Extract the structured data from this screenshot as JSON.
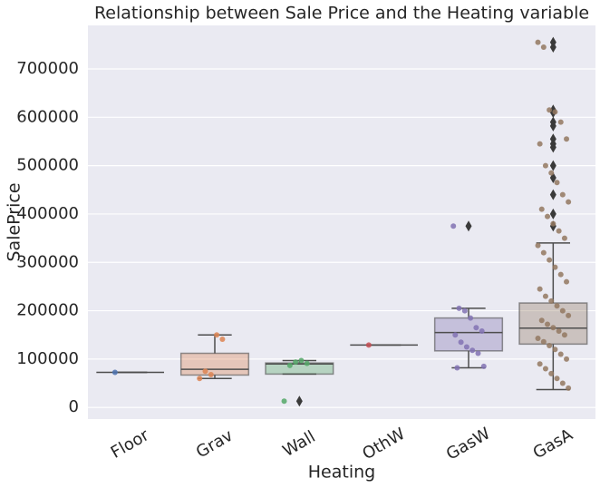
{
  "chart_data": {
    "type": "box",
    "title": "Relationship between Sale Price and the Heating variable",
    "x_label": "Heating",
    "y_label": "SalePrice",
    "categories": [
      "Floor",
      "Grav",
      "Wall",
      "OthW",
      "GasW",
      "GasA"
    ],
    "ylim": [
      -24000,
      790000
    ],
    "yticks": [
      0,
      100000,
      200000,
      300000,
      400000,
      500000,
      600000,
      700000
    ],
    "grid": true,
    "boxes": [
      {
        "color": "#4c72b0",
        "whislo": 72500,
        "q1": 72500,
        "med": 72500,
        "q3": 72500,
        "whishi": 72500,
        "fliers": [],
        "points": [
          72500
        ]
      },
      {
        "color": "#dd8452",
        "whislo": 60000,
        "q1": 67000,
        "med": 79000,
        "q3": 112000,
        "whishi": 150000,
        "fliers": [],
        "points": [
          60000,
          75000,
          68000,
          150000,
          141000
        ]
      },
      {
        "color": "#55a868",
        "whislo": 69000,
        "q1": 69000,
        "med": 90000,
        "q3": 92000,
        "whishi": 97000,
        "fliers": [
          13000
        ],
        "points": [
          13000,
          87000,
          94000,
          97000,
          91000
        ]
      },
      {
        "color": "#c44e52",
        "whislo": 129000,
        "q1": 129000,
        "med": 129000,
        "q3": 129000,
        "whishi": 129000,
        "fliers": [],
        "points": [
          129000
        ]
      },
      {
        "color": "#8172b3",
        "whislo": 82000,
        "q1": 117000,
        "med": 155000,
        "q3": 185000,
        "whishi": 205000,
        "fliers": [
          375000
        ],
        "points": [
          375000,
          205000,
          200000,
          185000,
          165000,
          158000,
          150000,
          135000,
          125000,
          118000,
          112000,
          85000,
          82000
        ]
      },
      {
        "color": "#937860",
        "whislo": 37000,
        "q1": 131000,
        "med": 164000,
        "q3": 216000,
        "whishi": 340000,
        "fliers": [
          755000,
          745000,
          615000,
          610000,
          590000,
          582000,
          555000,
          545000,
          538000,
          500000,
          475000,
          440000,
          400000,
          375000
        ],
        "points": [
          755000,
          745000,
          615000,
          611000,
          590000,
          555000,
          545000,
          500000,
          485000,
          465000,
          440000,
          425000,
          410000,
          395000,
          380000,
          365000,
          350000,
          335000,
          320000,
          305000,
          290000,
          275000,
          260000,
          245000,
          230000,
          220000,
          210000,
          200000,
          190000,
          180000,
          172000,
          165000,
          158000,
          150000,
          143000,
          136000,
          128000,
          120000,
          110000,
          100000,
          90000,
          80000,
          70000,
          60000,
          50000,
          40000
        ]
      }
    ]
  }
}
